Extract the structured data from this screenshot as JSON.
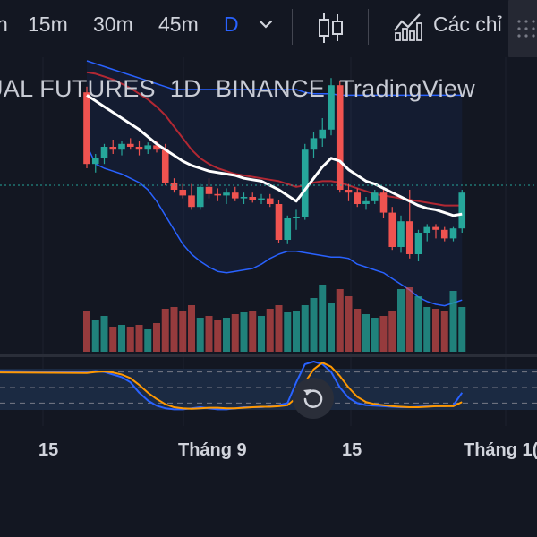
{
  "toolbar": {
    "timeframes": [
      "n",
      "15m",
      "30m",
      "45m",
      "D"
    ],
    "active_timeframe": "D",
    "indicators_label": "Các chỉ"
  },
  "legend": {
    "symbol": "UAL FUTURES",
    "interval": "1D",
    "exchange": "BINANCE",
    "source": "TradingView"
  },
  "x_axis": {
    "labels": [
      "15",
      "Tháng 9",
      "15",
      "Tháng 1("
    ]
  },
  "colors": {
    "background": "#131722",
    "up": "#26a69a",
    "down": "#ef5350",
    "ma": "#ffffff",
    "bb_upper": "#2962ff",
    "bb_lower": "#2962ff",
    "bb_basis": "#b22833",
    "stoch_k": "#2962ff",
    "stoch_d": "#ff9800"
  },
  "chart_data": {
    "type": "candlestick",
    "title": "",
    "candles": [
      {
        "o": 98,
        "h": 102,
        "l": 45,
        "c": 48
      },
      {
        "o": 48,
        "h": 55,
        "l": 42,
        "c": 52
      },
      {
        "o": 52,
        "h": 62,
        "l": 48,
        "c": 60
      },
      {
        "o": 60,
        "h": 65,
        "l": 55,
        "c": 58
      },
      {
        "o": 58,
        "h": 64,
        "l": 54,
        "c": 62
      },
      {
        "o": 62,
        "h": 66,
        "l": 58,
        "c": 60
      },
      {
        "o": 60,
        "h": 64,
        "l": 54,
        "c": 58
      },
      {
        "o": 58,
        "h": 63,
        "l": 55,
        "c": 61
      },
      {
        "o": 61,
        "h": 64,
        "l": 56,
        "c": 58
      },
      {
        "o": 58,
        "h": 62,
        "l": 33,
        "c": 35
      },
      {
        "o": 35,
        "h": 38,
        "l": 28,
        "c": 30
      },
      {
        "o": 30,
        "h": 34,
        "l": 24,
        "c": 26
      },
      {
        "o": 26,
        "h": 34,
        "l": 16,
        "c": 18
      },
      {
        "o": 18,
        "h": 34,
        "l": 16,
        "c": 32
      },
      {
        "o": 32,
        "h": 38,
        "l": 24,
        "c": 27
      },
      {
        "o": 27,
        "h": 31,
        "l": 22,
        "c": 26
      },
      {
        "o": 26,
        "h": 31,
        "l": 20,
        "c": 28
      },
      {
        "o": 28,
        "h": 32,
        "l": 22,
        "c": 24
      },
      {
        "o": 24,
        "h": 28,
        "l": 20,
        "c": 25
      },
      {
        "o": 25,
        "h": 28,
        "l": 21,
        "c": 23
      },
      {
        "o": 23,
        "h": 27,
        "l": 20,
        "c": 24
      },
      {
        "o": 24,
        "h": 27,
        "l": 18,
        "c": 20
      },
      {
        "o": 20,
        "h": 23,
        "l": -7,
        "c": -5
      },
      {
        "o": -5,
        "h": 12,
        "l": -8,
        "c": 10
      },
      {
        "o": 10,
        "h": 16,
        "l": 2,
        "c": 11
      },
      {
        "o": 11,
        "h": 62,
        "l": 9,
        "c": 58
      },
      {
        "o": 58,
        "h": 70,
        "l": 52,
        "c": 66
      },
      {
        "o": 66,
        "h": 80,
        "l": 60,
        "c": 72
      },
      {
        "o": 72,
        "h": 108,
        "l": 68,
        "c": 103
      },
      {
        "o": 103,
        "h": 106,
        "l": 28,
        "c": 30
      },
      {
        "o": 30,
        "h": 34,
        "l": 22,
        "c": 28
      },
      {
        "o": 28,
        "h": 31,
        "l": 18,
        "c": 20
      },
      {
        "o": 20,
        "h": 25,
        "l": 16,
        "c": 22
      },
      {
        "o": 22,
        "h": 30,
        "l": 20,
        "c": 28
      },
      {
        "o": 28,
        "h": 31,
        "l": 10,
        "c": 14
      },
      {
        "o": 14,
        "h": 18,
        "l": -12,
        "c": -10
      },
      {
        "o": -10,
        "h": 12,
        "l": -14,
        "c": 8
      },
      {
        "o": 8,
        "h": 30,
        "l": -18,
        "c": -15
      },
      {
        "o": -15,
        "h": 2,
        "l": -20,
        "c": 0
      },
      {
        "o": 0,
        "h": 6,
        "l": -6,
        "c": 4
      },
      {
        "o": 4,
        "h": 6,
        "l": -4,
        "c": 2
      },
      {
        "o": 2,
        "h": 4,
        "l": -6,
        "c": -4
      },
      {
        "o": -4,
        "h": 4,
        "l": -6,
        "c": 3
      },
      {
        "o": 3,
        "h": 30,
        "l": 0,
        "c": 28
      }
    ],
    "ma": [
      96,
      92,
      88,
      84,
      80,
      76,
      72,
      67,
      62,
      58,
      54,
      50,
      47,
      45,
      43,
      42,
      41,
      40,
      38,
      37,
      36,
      33,
      30,
      26,
      22,
      30,
      38,
      46,
      52,
      50,
      44,
      40,
      36,
      34,
      31,
      28,
      25,
      22,
      19,
      17,
      16,
      14,
      12,
      13
    ],
    "bb_upper": [
      120,
      118,
      116,
      114,
      112,
      110,
      108,
      106,
      104,
      102,
      100,
      100,
      100,
      100,
      100,
      100,
      100,
      100,
      100,
      100,
      100,
      100,
      100,
      100,
      100,
      98,
      97,
      97,
      97,
      96,
      96,
      96,
      96,
      96,
      96,
      96,
      96,
      96,
      96,
      96,
      96,
      96,
      96,
      96
    ],
    "bb_basis": [
      112,
      111,
      109,
      107,
      104,
      101,
      97,
      93,
      88,
      82,
      74,
      66,
      58,
      52,
      48,
      45,
      43,
      41,
      40,
      39,
      38,
      37,
      36,
      34,
      32,
      33,
      35,
      36,
      36,
      35,
      33,
      31,
      29,
      27,
      26,
      25,
      24,
      23,
      22,
      21,
      20,
      19,
      19,
      19
    ],
    "bb_lower": [
      61,
      48,
      45,
      43,
      41,
      38,
      35,
      30,
      22,
      12,
      2,
      -8,
      -15,
      -20,
      -24,
      -27,
      -28,
      -27,
      -26,
      -25,
      -22,
      -18,
      -15,
      -13,
      -13,
      -14,
      -15,
      -16,
      -17,
      -17,
      -18,
      -22,
      -24,
      -26,
      -28,
      -32,
      -36,
      -40,
      -45,
      -48,
      -50,
      -51,
      -49,
      -47
    ],
    "volume": [
      45,
      35,
      40,
      28,
      30,
      28,
      30,
      25,
      32,
      48,
      50,
      45,
      52,
      38,
      40,
      35,
      38,
      42,
      44,
      46,
      40,
      48,
      52,
      44,
      46,
      52,
      60,
      75,
      55,
      70,
      62,
      48,
      42,
      38,
      40,
      45,
      70,
      72,
      62,
      50,
      48,
      45,
      68,
      50
    ],
    "stoch_k": [
      80,
      82,
      80,
      75,
      70,
      60,
      40,
      25,
      15,
      10,
      8,
      8,
      10,
      12,
      10,
      8,
      8,
      10,
      12,
      12,
      12,
      14,
      16,
      20,
      60,
      95,
      100,
      95,
      80,
      50,
      30,
      20,
      16,
      15,
      14,
      13,
      12,
      12,
      13,
      14,
      14,
      14,
      16,
      40
    ],
    "stoch_d": [
      78,
      80,
      81,
      79,
      75,
      68,
      55,
      40,
      28,
      18,
      12,
      10,
      9,
      10,
      11,
      11,
      10,
      10,
      11,
      12,
      13,
      13,
      14,
      16,
      30,
      60,
      85,
      98,
      90,
      72,
      50,
      32,
      22,
      18,
      16,
      14,
      13,
      12,
      12,
      13,
      14,
      14,
      14,
      22
    ],
    "stoch_levels": [
      80,
      50,
      20
    ]
  }
}
